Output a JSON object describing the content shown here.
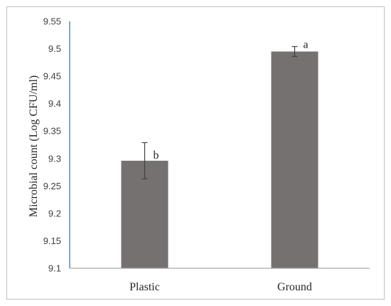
{
  "chart_data": {
    "type": "bar",
    "categories": [
      "Plastic",
      "Ground"
    ],
    "values": [
      9.296,
      9.495
    ],
    "errors": [
      0.033,
      0.009
    ],
    "annotations": [
      "b",
      "a"
    ],
    "title": "",
    "xlabel": "",
    "ylabel": "Microbial count (Log CFU/ml)",
    "ylim": [
      9.1,
      9.55
    ],
    "yticks": [
      "9.1",
      "9.15",
      "9.2",
      "9.25",
      "9.3",
      "9.35",
      "9.4",
      "9.45",
      "9.5",
      "9.55"
    ],
    "grid": false,
    "legend": "none",
    "colors": {
      "bar": "#767171",
      "y_axis": "#4472c4",
      "x_axis": "#a6a6a6",
      "error_bar": "#404040"
    }
  }
}
